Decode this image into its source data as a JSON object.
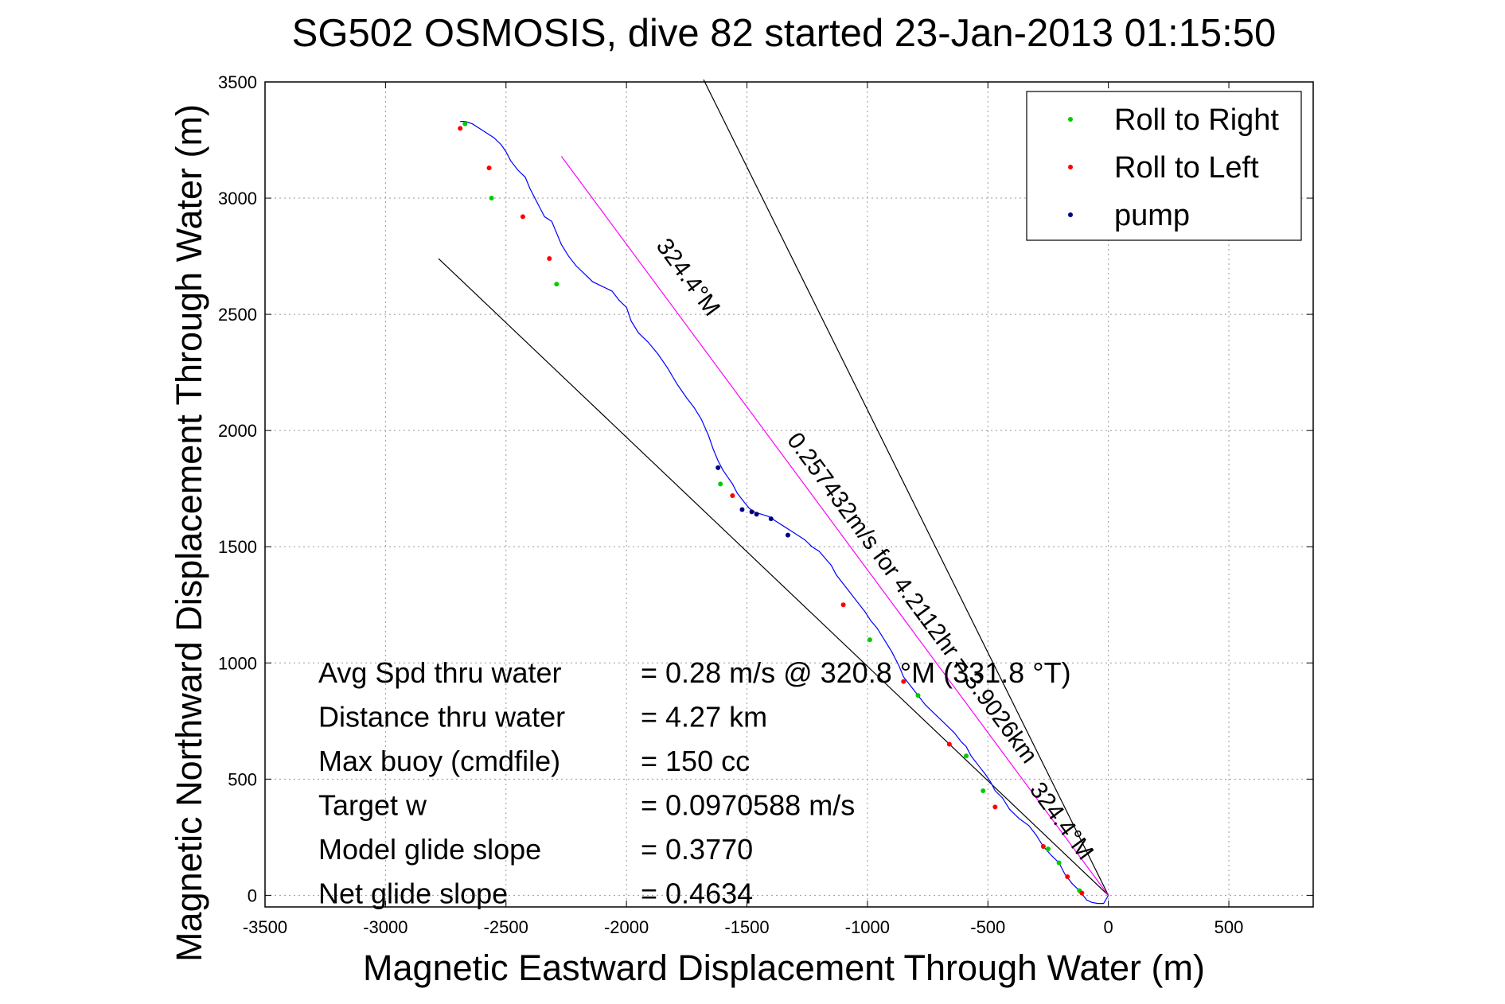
{
  "chart_data": {
    "type": "line",
    "title": "SG502 OSMOSIS, dive 82 started 23-Jan-2013 01:15:50",
    "xlabel": "Magnetic Eastward Displacement Through Water (m)",
    "ylabel": "Magnetic Northward Displacement Through Water (m)",
    "xlim": [
      -3500,
      850
    ],
    "ylim": [
      -50,
      3500
    ],
    "xticks": [
      -3500,
      -3000,
      -2500,
      -2000,
      -1500,
      -1000,
      -500,
      0,
      500
    ],
    "yticks": [
      0,
      500,
      1000,
      1500,
      2000,
      2500,
      3000,
      3500
    ],
    "grid": true,
    "legend_position": "top-right",
    "legend": [
      {
        "label": "Roll to Right",
        "color": "#00cc00"
      },
      {
        "label": "Roll to Left",
        "color": "#ff0000"
      },
      {
        "label": "pump",
        "color": "#000080"
      }
    ],
    "track_color": "#0000ff",
    "track": {
      "x": [
        0,
        -20,
        -45,
        -70,
        -90,
        -105,
        -120,
        -150,
        -180,
        -205,
        -235,
        -270,
        -300,
        -330,
        -370,
        -410,
        -440,
        -470,
        -490,
        -510,
        -540,
        -570,
        -590,
        -610,
        -640,
        -680,
        -720,
        -760,
        -790,
        -820,
        -850,
        -870,
        -900,
        -930,
        -960,
        -985,
        -1010,
        -1040,
        -1070,
        -1100,
        -1130,
        -1150,
        -1175,
        -1200,
        -1230,
        -1260,
        -1290,
        -1320,
        -1350,
        -1380,
        -1410,
        -1440,
        -1470,
        -1490,
        -1510,
        -1525,
        -1540,
        -1560,
        -1580,
        -1600,
        -1620,
        -1640,
        -1660,
        -1690,
        -1720,
        -1750,
        -1790,
        -1830,
        -1870,
        -1910,
        -1950,
        -1980,
        -2000,
        -2030,
        -2060,
        -2100,
        -2140,
        -2180,
        -2210,
        -2240,
        -2270,
        -2290,
        -2310,
        -2340,
        -2360,
        -2380,
        -2400,
        -2420,
        -2450,
        -2480,
        -2500,
        -2520,
        -2550,
        -2580,
        -2610,
        -2640,
        -2670,
        -2690
      ],
      "y": [
        0,
        -35,
        -35,
        -30,
        -20,
        0,
        20,
        50,
        90,
        140,
        170,
        210,
        260,
        300,
        330,
        370,
        420,
        450,
        490,
        520,
        560,
        600,
        640,
        660,
        700,
        740,
        780,
        820,
        860,
        900,
        940,
        990,
        1050,
        1100,
        1150,
        1180,
        1220,
        1260,
        1300,
        1340,
        1380,
        1420,
        1450,
        1480,
        1500,
        1530,
        1550,
        1570,
        1590,
        1610,
        1630,
        1640,
        1650,
        1665,
        1690,
        1710,
        1730,
        1770,
        1800,
        1830,
        1870,
        1920,
        1980,
        2050,
        2100,
        2140,
        2200,
        2270,
        2330,
        2380,
        2420,
        2470,
        2530,
        2560,
        2600,
        2620,
        2640,
        2680,
        2710,
        2750,
        2800,
        2850,
        2900,
        2920,
        2960,
        3000,
        3040,
        3090,
        3120,
        3160,
        3200,
        3230,
        3260,
        3280,
        3300,
        3320,
        3330,
        3330
      ]
    },
    "markers": {
      "roll_right": {
        "x": [
          -120,
          -205,
          -250,
          -520,
          -590,
          -790,
          -990,
          -1610,
          -2290,
          -2560,
          -2670
        ],
        "y": [
          20,
          140,
          200,
          450,
          600,
          860,
          1100,
          1770,
          2630,
          3000,
          3320
        ]
      },
      "roll_left": {
        "x": [
          -110,
          -170,
          -270,
          -470,
          -660,
          -850,
          -1100,
          -1560,
          -2320,
          -2430,
          -2570,
          -2690
        ],
        "y": [
          10,
          80,
          210,
          380,
          650,
          920,
          1250,
          1720,
          2740,
          2920,
          3130,
          3300
        ]
      },
      "pump": {
        "x": [
          -1520,
          -1480,
          -1460,
          -1400,
          -1330,
          -1620
        ],
        "y": [
          1660,
          1650,
          1640,
          1620,
          1550,
          1840
        ]
      }
    },
    "reference_lines": [
      {
        "color": "#000000",
        "x": [
          0,
          -1680
        ],
        "y": [
          0,
          3510
        ]
      },
      {
        "color": "#000000",
        "x": [
          0,
          -2780
        ],
        "y": [
          0,
          2740
        ]
      },
      {
        "color": "#ff00ff",
        "x": [
          0,
          -2270
        ],
        "y": [
          0,
          3180
        ]
      }
    ],
    "line_labels": [
      {
        "text": "324.4°M",
        "x": -1770,
        "y": 2640,
        "rotate": 53.6
      },
      {
        "text": "0.257432m/s for 4.2112hr = 3.9026km",
        "x": -840,
        "y": 1260,
        "rotate": 53.6
      },
      {
        "text": "324.4°M",
        "x": -220,
        "y": 300,
        "rotate": 53.6
      }
    ],
    "stats": [
      {
        "label": "Avg Spd thru water",
        "value": "=  0.28 m/s @ 320.8 °M (331.8 °T)"
      },
      {
        "label": "Distance thru water",
        "value": "=  4.27 km"
      },
      {
        "label": "Max buoy (cmdfile)",
        "value": "= 150 cc"
      },
      {
        "label": "Target w",
        "value": "= 0.0970588 m/s"
      },
      {
        "label": "Model glide slope",
        "value": "= 0.3770"
      },
      {
        "label": "Net glide slope",
        "value": "= 0.4634"
      }
    ]
  }
}
